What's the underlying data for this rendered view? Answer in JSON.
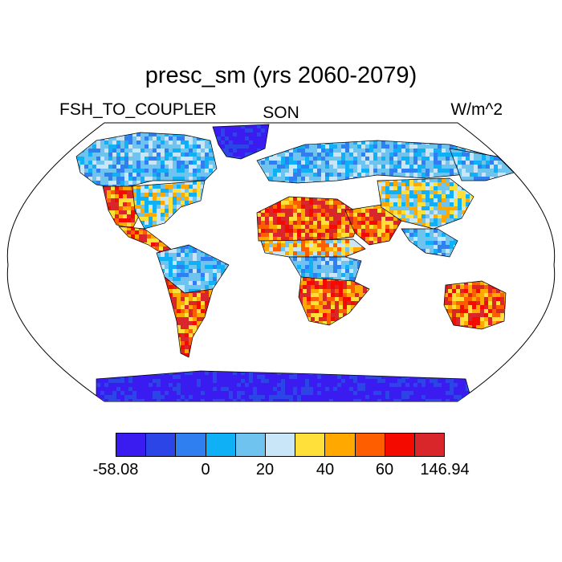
{
  "title": "presc_sm (yrs 2060-2079)",
  "left_label": "FSH_TO_COUPLER",
  "center_label": "SON",
  "units_label": "W/m^2",
  "colorbar": {
    "colors": [
      "#3b1cf0",
      "#2c45e6",
      "#2f7ff0",
      "#0fb0f5",
      "#6ec4ee",
      "#c9e6f8",
      "#ffe03a",
      "#ffa800",
      "#ff5e00",
      "#f50a00",
      "#d8262a"
    ],
    "labels": [
      "-58.08",
      "0",
      "20",
      "40",
      "60",
      "146.94"
    ]
  },
  "map": {
    "projection": "robinson",
    "ocean_color": "#ffffff",
    "regions": {
      "greenland": "cold",
      "north_america_boreal": "cool",
      "usa_west": "hot",
      "usa_east": "mixed",
      "central_america": "hot",
      "amazon": "cool",
      "south_america_south": "hot",
      "europe_boreal": "cool",
      "sahara": "hot",
      "sahel": "warm",
      "central_africa": "cool",
      "southern_africa": "hot",
      "middle_east": "hot",
      "central_asia": "mixed",
      "siberia": "cool",
      "southeast_asia": "cool",
      "australia": "hot",
      "antarctica": "cold"
    }
  }
}
